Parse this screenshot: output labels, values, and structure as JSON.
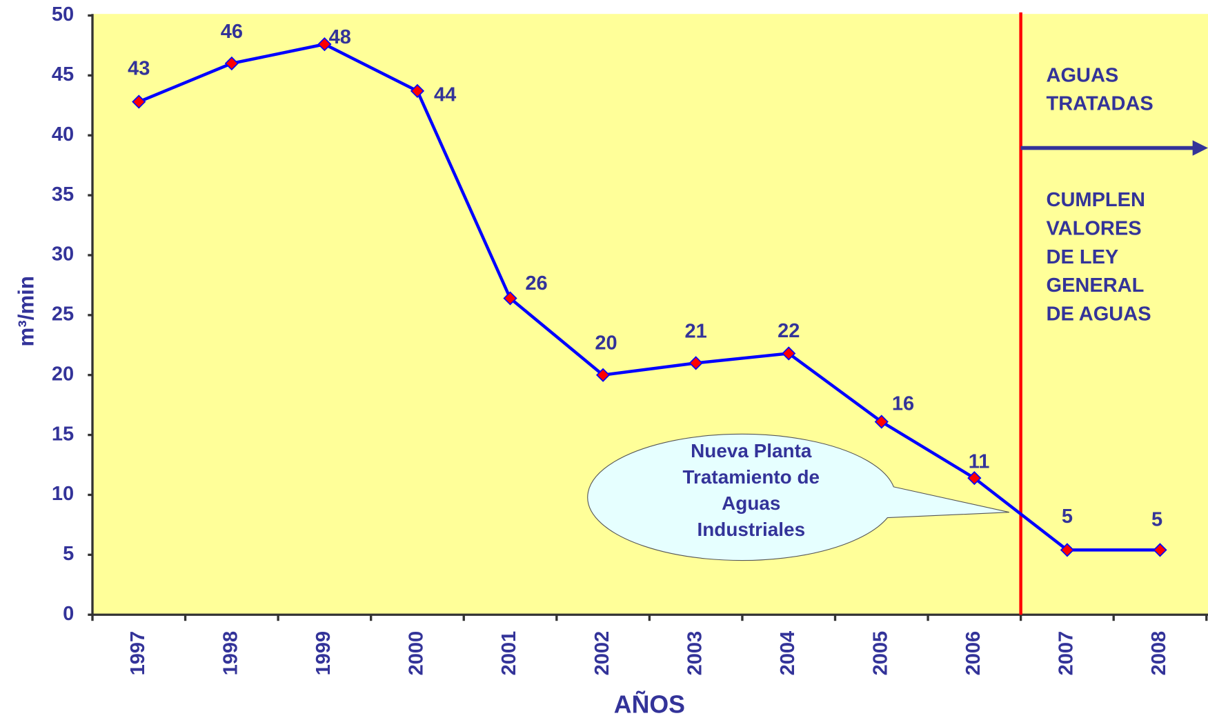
{
  "chart_data": {
    "type": "line",
    "categories": [
      "1997",
      "1998",
      "1999",
      "2000",
      "2001",
      "2002",
      "2003",
      "2004",
      "2005",
      "2006",
      "2007",
      "2008"
    ],
    "series": [
      {
        "color": "#0000ff",
        "marker_color": "#ff0000",
        "values": [
          42.8,
          46,
          47.6,
          43.7,
          26.4,
          20,
          21,
          21.8,
          16.1,
          11.4,
          5.4,
          5.4
        ],
        "value_labels": [
          "43",
          "46",
          "48",
          "44",
          "26",
          "20",
          "21",
          "22",
          "16",
          "11",
          "5",
          "5"
        ]
      }
    ],
    "ylim": [
      0,
      50
    ],
    "yticks": [
      0,
      5,
      10,
      15,
      20,
      25,
      30,
      35,
      40,
      45,
      50
    ],
    "y_label": "m³/min",
    "x_label": "AÑOS",
    "background": "#ffff99",
    "annotations": {
      "treated": [
        "AGUAS",
        "TRATADAS"
      ],
      "compliance": [
        "CUMPLEN",
        "VALORES",
        "DE LEY",
        "GENERAL",
        "DE AGUAS"
      ],
      "callout": [
        "Nueva Planta",
        "Tratamiento de",
        "Aguas",
        "Industriales"
      ]
    }
  }
}
